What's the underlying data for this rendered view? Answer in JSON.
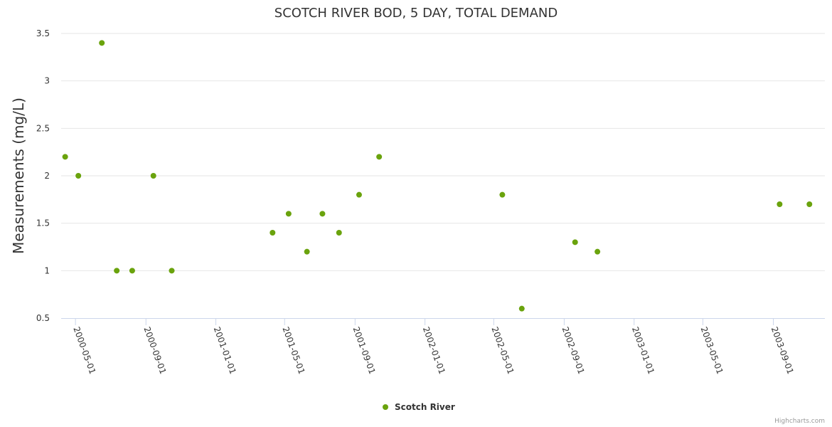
{
  "chart_data": {
    "type": "scatter",
    "title": "SCOTCH RIVER BOD, 5 DAY, TOTAL DEMAND",
    "xlabel": "",
    "ylabel": "Measurements (mg/L)",
    "ylim": [
      0.5,
      3.5
    ],
    "yticks": [
      0.5,
      1,
      1.5,
      2,
      2.5,
      3,
      3.5
    ],
    "xlim": [
      "2000-04-06",
      "2003-11-30"
    ],
    "xticks": [
      "2000-05-01",
      "2000-09-01",
      "2001-01-01",
      "2001-05-01",
      "2001-09-01",
      "2002-01-01",
      "2002-05-01",
      "2002-09-01",
      "2003-01-01",
      "2003-05-01",
      "2003-09-01"
    ],
    "grid": true,
    "legend_position": "bottom-center",
    "series": [
      {
        "name": "Scotch River",
        "color": "#6aa30d",
        "points": [
          {
            "x": "2000-04-13",
            "y": 2.2
          },
          {
            "x": "2000-05-06",
            "y": 2.0
          },
          {
            "x": "2000-06-16",
            "y": 3.4
          },
          {
            "x": "2000-07-12",
            "y": 1.0
          },
          {
            "x": "2000-08-08",
            "y": 1.0
          },
          {
            "x": "2000-09-14",
            "y": 2.0
          },
          {
            "x": "2000-10-16",
            "y": 1.0
          },
          {
            "x": "2001-04-10",
            "y": 1.4
          },
          {
            "x": "2001-05-08",
            "y": 1.6
          },
          {
            "x": "2001-06-09",
            "y": 1.2
          },
          {
            "x": "2001-07-06",
            "y": 1.6
          },
          {
            "x": "2001-08-04",
            "y": 1.4
          },
          {
            "x": "2001-09-08",
            "y": 1.8
          },
          {
            "x": "2001-10-13",
            "y": 2.2
          },
          {
            "x": "2002-05-16",
            "y": 1.8
          },
          {
            "x": "2002-06-19",
            "y": 0.6
          },
          {
            "x": "2002-09-20",
            "y": 1.3
          },
          {
            "x": "2002-10-29",
            "y": 1.2
          },
          {
            "x": "2003-09-12",
            "y": 1.7
          },
          {
            "x": "2003-11-03",
            "y": 1.7
          }
        ]
      }
    ]
  },
  "credits": "Highcharts.com"
}
